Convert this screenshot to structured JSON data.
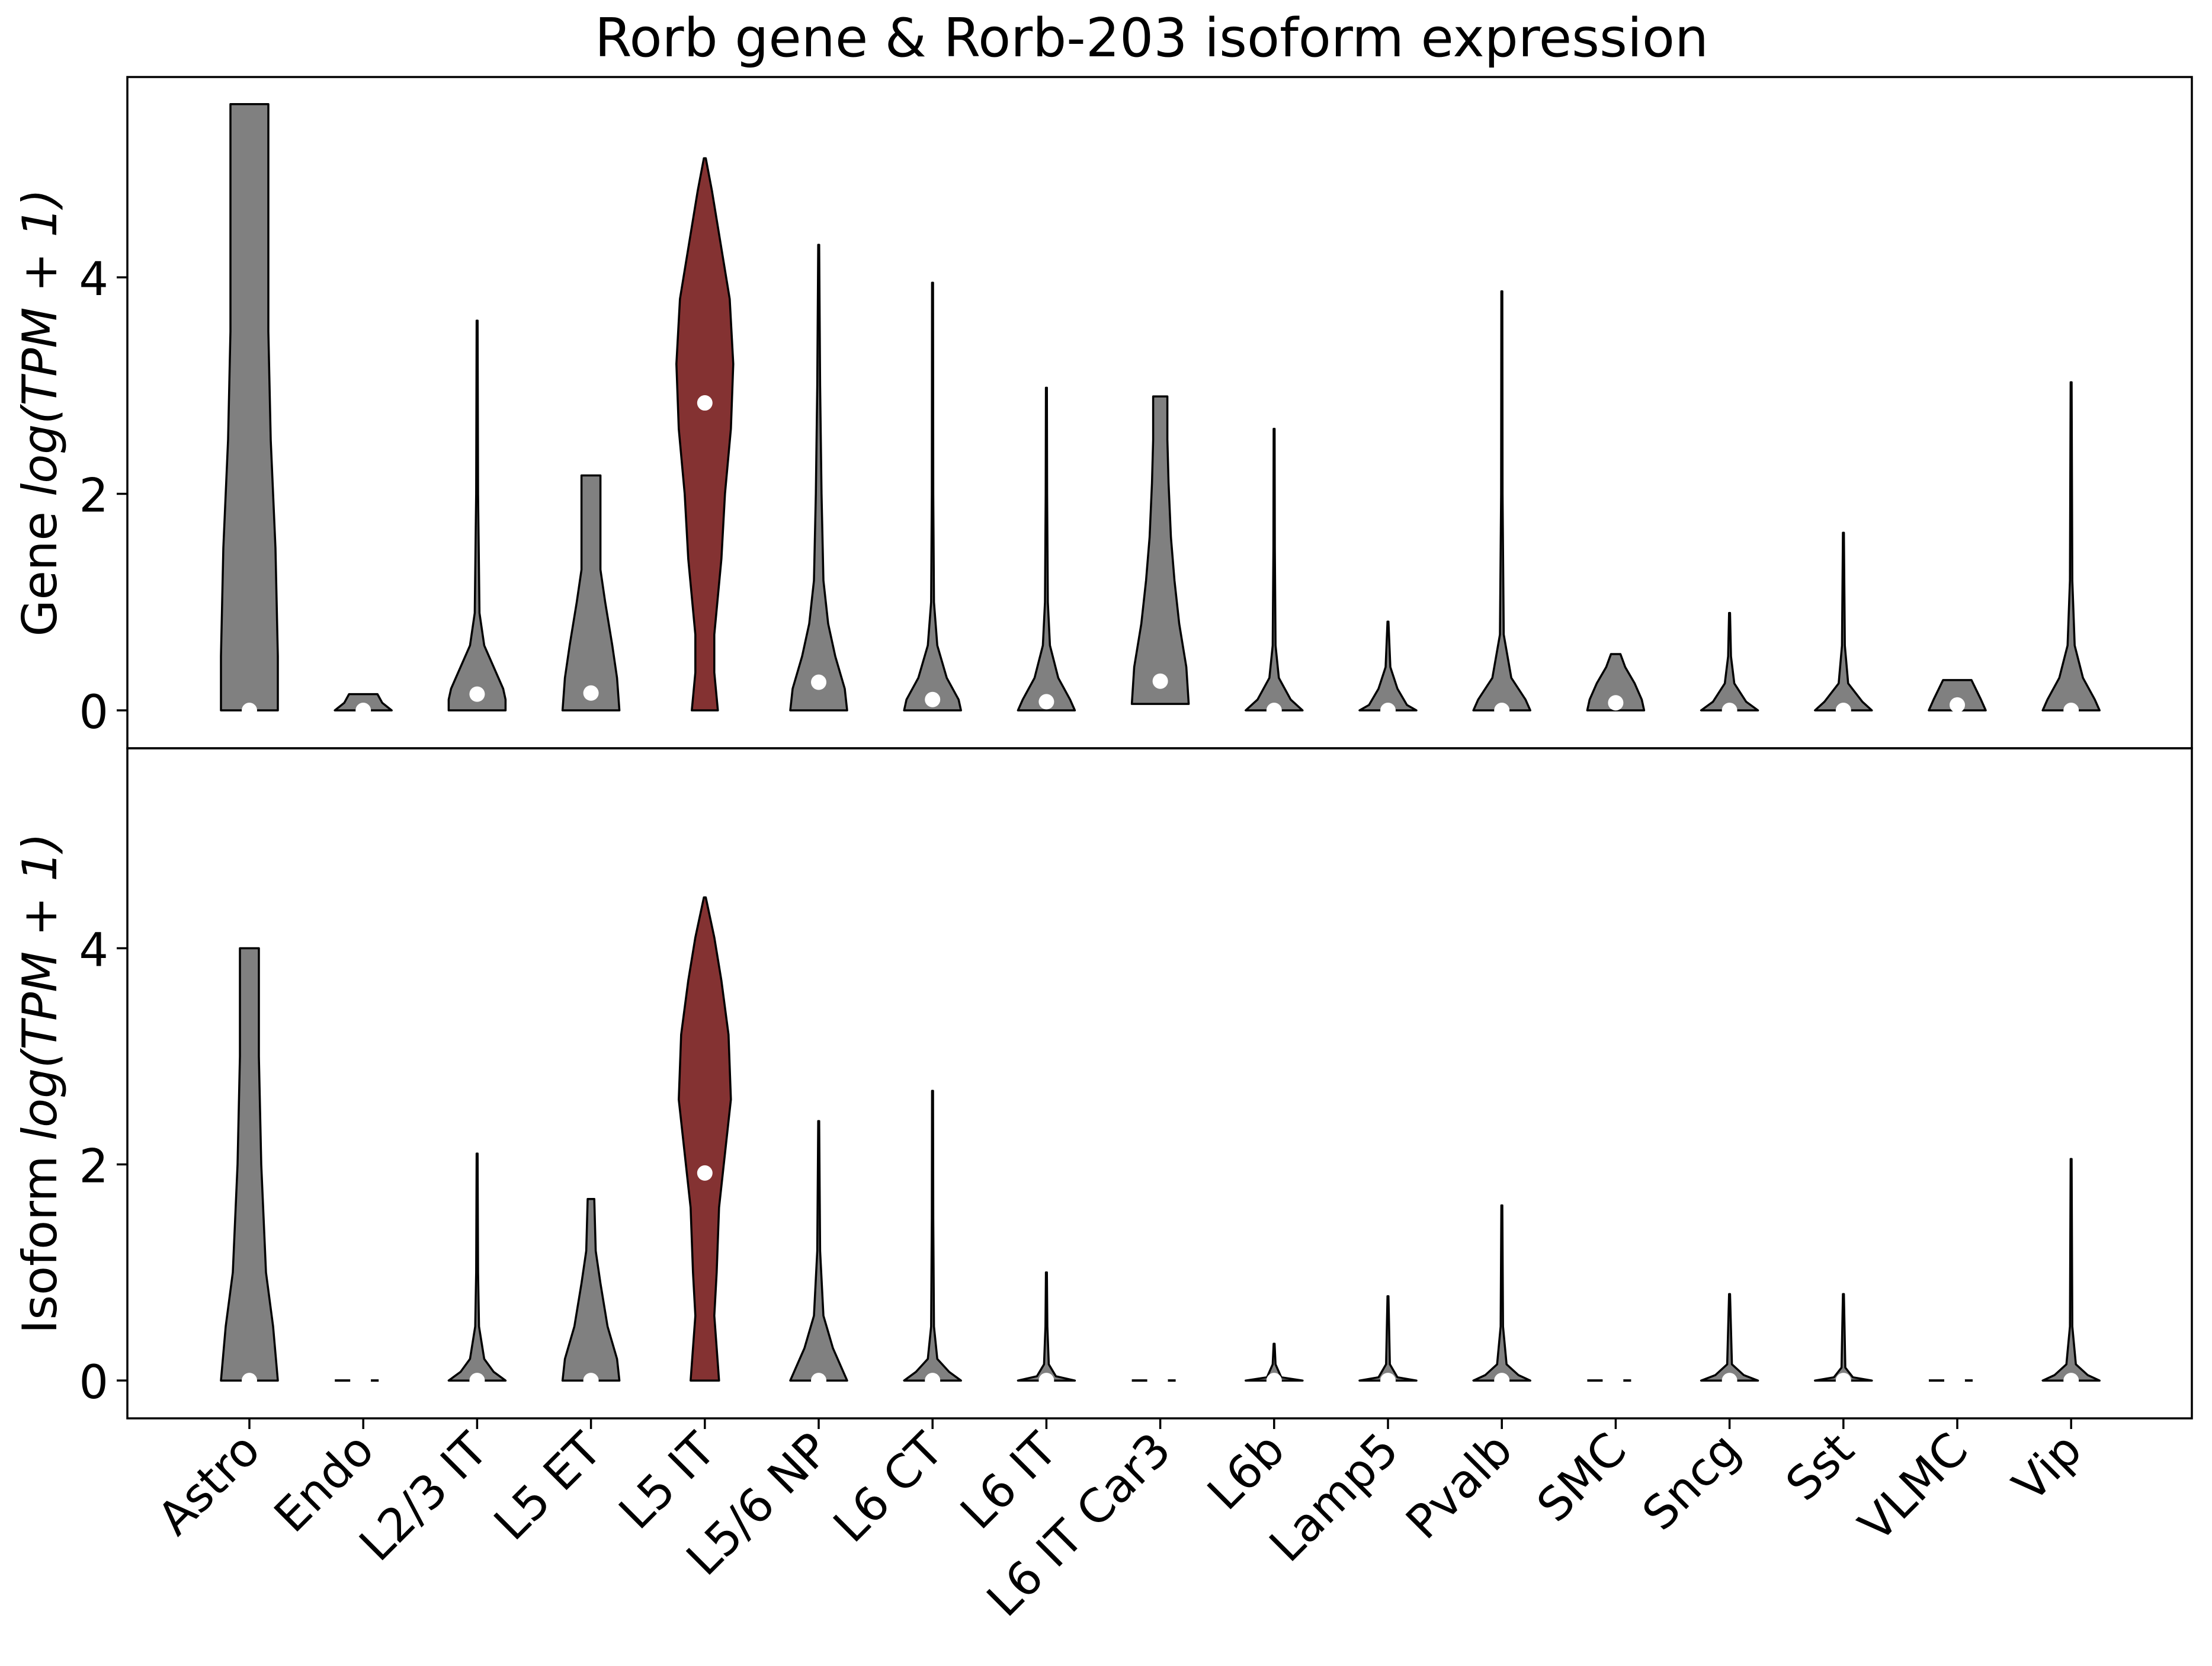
{
  "chart_data": {
    "type": "violin",
    "title": "Rorb gene & Rorb-203 isoform expression",
    "categories": [
      "Astro",
      "Endo",
      "L2/3 IT",
      "L5 ET",
      "L5 IT",
      "L5/6 NP",
      "L6 CT",
      "L6 IT",
      "L6 IT Car3",
      "L6b",
      "Lamp5",
      "Pvalb",
      "SMC",
      "Sncg",
      "Sst",
      "VLMC",
      "Vip"
    ],
    "highlight_category": "L5 IT",
    "colors": {
      "default": "#808080",
      "highlight": "#843232",
      "median_dot": "#ffffff",
      "edge": "#000000"
    },
    "ylim": [
      -0.35,
      5.85
    ],
    "yticks": [
      0,
      2,
      4
    ],
    "panels": [
      {
        "name": "gene",
        "ylabel_prefix": "Gene ",
        "ylabel_math": "log(TPM + 1)",
        "violins": [
          {
            "category": "Astro",
            "median": 0,
            "profile": [
              [
                0,
                0.12
              ],
              [
                0.5,
                0.12
              ],
              [
                1.5,
                0.11
              ],
              [
                2.5,
                0.09
              ],
              [
                3.5,
                0.08
              ],
              [
                4.5,
                0.08
              ],
              [
                5.6,
                0.08
              ]
            ]
          },
          {
            "category": "Endo",
            "median": 0,
            "profile": [
              [
                0,
                0.12
              ],
              [
                0.07,
                0.08
              ],
              [
                0.15,
                0.06
              ]
            ]
          },
          {
            "category": "L2/3 IT",
            "median": 0.15,
            "profile": [
              [
                0,
                0.12
              ],
              [
                0.1,
                0.12
              ],
              [
                0.2,
                0.11
              ],
              [
                0.4,
                0.07
              ],
              [
                0.6,
                0.03
              ],
              [
                0.9,
                0.01
              ],
              [
                2,
                0.004
              ],
              [
                3.6,
                0.002
              ]
            ]
          },
          {
            "category": "L5 ET",
            "median": 0.16,
            "profile": [
              [
                0,
                0.12
              ],
              [
                0.3,
                0.11
              ],
              [
                0.6,
                0.09
              ],
              [
                1,
                0.06
              ],
              [
                1.3,
                0.04
              ],
              [
                2,
                0.04
              ],
              [
                2.17,
                0.04
              ]
            ]
          },
          {
            "category": "L5 IT",
            "median": 2.84,
            "profile": [
              [
                0,
                0.055
              ],
              [
                0.35,
                0.04
              ],
              [
                0.7,
                0.04
              ],
              [
                1.4,
                0.07
              ],
              [
                2,
                0.085
              ],
              [
                2.6,
                0.11
              ],
              [
                3.2,
                0.12
              ],
              [
                3.8,
                0.105
              ],
              [
                4.4,
                0.06
              ],
              [
                4.8,
                0.03
              ],
              [
                5.1,
                0.004
              ]
            ]
          },
          {
            "category": "L5/6 NP",
            "median": 0.26,
            "profile": [
              [
                0,
                0.12
              ],
              [
                0.2,
                0.11
              ],
              [
                0.5,
                0.07
              ],
              [
                0.8,
                0.04
              ],
              [
                1.2,
                0.02
              ],
              [
                2,
                0.012
              ],
              [
                3,
                0.006
              ],
              [
                4.3,
                0.002
              ]
            ]
          },
          {
            "category": "L6 CT",
            "median": 0.1,
            "profile": [
              [
                0,
                0.12
              ],
              [
                0.1,
                0.11
              ],
              [
                0.3,
                0.06
              ],
              [
                0.6,
                0.02
              ],
              [
                1,
                0.006
              ],
              [
                2,
                0.003
              ],
              [
                3.95,
                0.002
              ]
            ]
          },
          {
            "category": "L6 IT",
            "median": 0.08,
            "profile": [
              [
                0,
                0.12
              ],
              [
                0.1,
                0.1
              ],
              [
                0.3,
                0.05
              ],
              [
                0.6,
                0.015
              ],
              [
                1,
                0.006
              ],
              [
                2,
                0.003
              ],
              [
                2.98,
                0.002
              ]
            ]
          },
          {
            "category": "L6 IT Car3",
            "median": 0.27,
            "profile": [
              [
                0.06,
                0.12
              ],
              [
                0.4,
                0.11
              ],
              [
                0.8,
                0.08
              ],
              [
                1.2,
                0.06
              ],
              [
                1.6,
                0.045
              ],
              [
                2.1,
                0.035
              ],
              [
                2.5,
                0.03
              ],
              [
                2.9,
                0.03
              ]
            ]
          },
          {
            "category": "L6b",
            "median": 0,
            "profile": [
              [
                0,
                0.12
              ],
              [
                0.1,
                0.07
              ],
              [
                0.3,
                0.02
              ],
              [
                0.6,
                0.006
              ],
              [
                1.5,
                0.003
              ],
              [
                2.6,
                0.002
              ]
            ]
          },
          {
            "category": "Lamp5",
            "median": 0,
            "profile": [
              [
                0,
                0.12
              ],
              [
                0.05,
                0.08
              ],
              [
                0.2,
                0.04
              ],
              [
                0.4,
                0.01
              ],
              [
                0.82,
                0.002
              ]
            ]
          },
          {
            "category": "Pvalb",
            "median": 0,
            "profile": [
              [
                0,
                0.12
              ],
              [
                0.1,
                0.1
              ],
              [
                0.3,
                0.04
              ],
              [
                0.7,
                0.008
              ],
              [
                2,
                0.003
              ],
              [
                3.87,
                0.002
              ]
            ]
          },
          {
            "category": "SMC",
            "median": 0.07,
            "profile": [
              [
                0,
                0.12
              ],
              [
                0.1,
                0.11
              ],
              [
                0.25,
                0.08
              ],
              [
                0.4,
                0.04
              ],
              [
                0.52,
                0.02
              ]
            ]
          },
          {
            "category": "Sncg",
            "median": 0,
            "profile": [
              [
                0,
                0.12
              ],
              [
                0.08,
                0.07
              ],
              [
                0.25,
                0.02
              ],
              [
                0.5,
                0.006
              ],
              [
                0.9,
                0.002
              ]
            ]
          },
          {
            "category": "Sst",
            "median": 0,
            "profile": [
              [
                0,
                0.12
              ],
              [
                0.08,
                0.08
              ],
              [
                0.25,
                0.02
              ],
              [
                0.6,
                0.006
              ],
              [
                1.64,
                0.002
              ]
            ]
          },
          {
            "category": "VLMC",
            "median": 0.05,
            "profile": [
              [
                0,
                0.12
              ],
              [
                0.1,
                0.1
              ],
              [
                0.28,
                0.06
              ]
            ]
          },
          {
            "category": "Vip",
            "median": 0,
            "profile": [
              [
                0,
                0.12
              ],
              [
                0.1,
                0.1
              ],
              [
                0.3,
                0.05
              ],
              [
                0.6,
                0.015
              ],
              [
                1.2,
                0.005
              ],
              [
                3.03,
                0.002
              ]
            ]
          }
        ]
      },
      {
        "name": "isoform",
        "ylabel_prefix": "Isoform ",
        "ylabel_math": "log(TPM + 1)",
        "violins": [
          {
            "category": "Astro",
            "median": 0,
            "profile": [
              [
                0,
                0.12
              ],
              [
                0.5,
                0.1
              ],
              [
                1,
                0.07
              ],
              [
                2,
                0.05
              ],
              [
                3,
                0.04
              ],
              [
                4,
                0.04
              ]
            ]
          },
          {
            "category": "Endo",
            "median": 0,
            "profile": [
              [
                0,
                0.12
              ]
            ]
          },
          {
            "category": "L2/3 IT",
            "median": 0,
            "profile": [
              [
                0,
                0.12
              ],
              [
                0.08,
                0.07
              ],
              [
                0.2,
                0.03
              ],
              [
                0.5,
                0.008
              ],
              [
                1,
                0.004
              ],
              [
                2.1,
                0.002
              ]
            ]
          },
          {
            "category": "L5 ET",
            "median": 0,
            "profile": [
              [
                0,
                0.12
              ],
              [
                0.2,
                0.11
              ],
              [
                0.5,
                0.07
              ],
              [
                0.9,
                0.04
              ],
              [
                1.2,
                0.02
              ],
              [
                1.68,
                0.014
              ]
            ]
          },
          {
            "category": "L5 IT",
            "median": 1.92,
            "profile": [
              [
                0,
                0.06
              ],
              [
                0.3,
                0.05
              ],
              [
                0.6,
                0.04
              ],
              [
                1,
                0.05
              ],
              [
                1.6,
                0.06
              ],
              [
                2.2,
                0.09
              ],
              [
                2.6,
                0.11
              ],
              [
                3.2,
                0.1
              ],
              [
                3.7,
                0.07
              ],
              [
                4.1,
                0.04
              ],
              [
                4.47,
                0.004
              ]
            ]
          },
          {
            "category": "L5/6 NP",
            "median": 0,
            "profile": [
              [
                0,
                0.12
              ],
              [
                0.1,
                0.1
              ],
              [
                0.3,
                0.06
              ],
              [
                0.6,
                0.02
              ],
              [
                1.2,
                0.006
              ],
              [
                2.4,
                0.002
              ]
            ]
          },
          {
            "category": "L6 CT",
            "median": 0,
            "profile": [
              [
                0,
                0.12
              ],
              [
                0.08,
                0.07
              ],
              [
                0.2,
                0.02
              ],
              [
                0.5,
                0.006
              ],
              [
                1.5,
                0.003
              ],
              [
                2.68,
                0.002
              ]
            ]
          },
          {
            "category": "L6 IT",
            "median": 0,
            "profile": [
              [
                0,
                0.12
              ],
              [
                0.04,
                0.04
              ],
              [
                0.15,
                0.01
              ],
              [
                0.5,
                0.004
              ],
              [
                1,
                0.002
              ]
            ]
          },
          {
            "category": "L6 IT Car3",
            "median": 0,
            "profile": [
              [
                0,
                0.12
              ]
            ]
          },
          {
            "category": "L6b",
            "median": 0,
            "profile": [
              [
                0,
                0.12
              ],
              [
                0.03,
                0.03
              ],
              [
                0.15,
                0.006
              ],
              [
                0.34,
                0.002
              ]
            ]
          },
          {
            "category": "Lamp5",
            "median": 0,
            "profile": [
              [
                0,
                0.12
              ],
              [
                0.03,
                0.04
              ],
              [
                0.15,
                0.008
              ],
              [
                0.78,
                0.002
              ]
            ]
          },
          {
            "category": "Pvalb",
            "median": 0,
            "profile": [
              [
                0,
                0.12
              ],
              [
                0.05,
                0.07
              ],
              [
                0.15,
                0.02
              ],
              [
                0.5,
                0.005
              ],
              [
                1.62,
                0.002
              ]
            ]
          },
          {
            "category": "SMC",
            "median": 0,
            "profile": [
              [
                0,
                0.12
              ]
            ]
          },
          {
            "category": "Sncg",
            "median": 0,
            "profile": [
              [
                0,
                0.12
              ],
              [
                0.05,
                0.06
              ],
              [
                0.15,
                0.01
              ],
              [
                0.8,
                0.002
              ]
            ]
          },
          {
            "category": "Sst",
            "median": 0,
            "profile": [
              [
                0,
                0.12
              ],
              [
                0.03,
                0.04
              ],
              [
                0.12,
                0.008
              ],
              [
                0.8,
                0.002
              ]
            ]
          },
          {
            "category": "VLMC",
            "median": 0,
            "profile": [
              [
                0,
                0.12
              ]
            ]
          },
          {
            "category": "Vip",
            "median": 0,
            "profile": [
              [
                0,
                0.12
              ],
              [
                0.05,
                0.07
              ],
              [
                0.15,
                0.02
              ],
              [
                0.5,
                0.005
              ],
              [
                2.05,
                0.002
              ]
            ]
          }
        ]
      }
    ]
  }
}
